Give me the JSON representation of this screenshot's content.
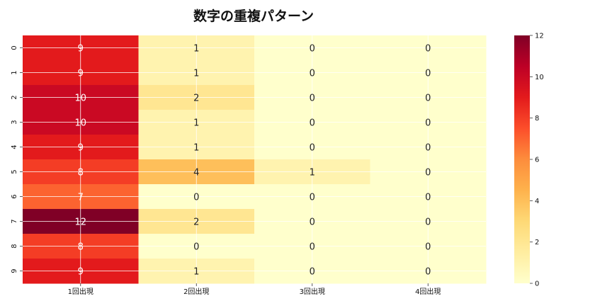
{
  "chart_data": {
    "type": "heatmap",
    "title": "数字の重複パターン",
    "xlabel": "",
    "ylabel": "",
    "columns": [
      "1回出現",
      "2回出現",
      "3回出現",
      "4回出現"
    ],
    "rows": [
      "0",
      "1",
      "2",
      "3",
      "4",
      "5",
      "6",
      "7",
      "8",
      "9"
    ],
    "values": [
      [
        9,
        1,
        0,
        0
      ],
      [
        9,
        1,
        0,
        0
      ],
      [
        10,
        2,
        0,
        0
      ],
      [
        10,
        1,
        0,
        0
      ],
      [
        9,
        1,
        0,
        0
      ],
      [
        8,
        4,
        1,
        0
      ],
      [
        7,
        0,
        0,
        0
      ],
      [
        12,
        2,
        0,
        0
      ],
      [
        8,
        0,
        0,
        0
      ],
      [
        9,
        1,
        0,
        0
      ]
    ],
    "vmin": 0,
    "vmax": 12,
    "colormap": "YlOrRd",
    "colorbar_ticks": [
      0,
      2,
      4,
      6,
      8,
      10,
      12
    ],
    "annotated": true,
    "grid": true
  }
}
